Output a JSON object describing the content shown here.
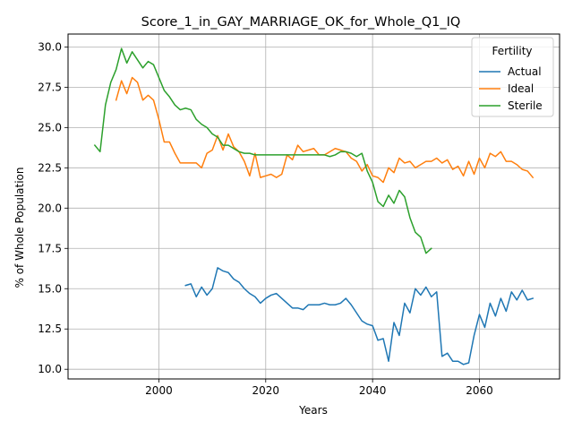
{
  "chart_data": {
    "type": "line",
    "title": "Score_1_in_GAY_MARRIAGE_OK_for_Whole_Q1_IQ",
    "xlabel": "Years",
    "ylabel": "% of Whole Population",
    "xlim": [
      1983,
      2075
    ],
    "ylim": [
      9.4,
      30.8
    ],
    "xticks": [
      2000,
      2020,
      2040,
      2060
    ],
    "yticks": [
      10.0,
      12.5,
      15.0,
      17.5,
      20.0,
      22.5,
      25.0,
      27.5,
      30.0
    ],
    "xtick_labels": [
      "2000",
      "2020",
      "2040",
      "2060"
    ],
    "ytick_labels": [
      "10.0",
      "12.5",
      "15.0",
      "17.5",
      "20.0",
      "22.5",
      "25.0",
      "27.5",
      "30.0"
    ],
    "grid": true,
    "legend": {
      "title": "Fertility",
      "position": "top-right"
    },
    "series": [
      {
        "name": "Actual",
        "color": "#1f77b4",
        "x": [
          2005,
          2006,
          2007,
          2008,
          2009,
          2010,
          2011,
          2012,
          2013,
          2014,
          2015,
          2016,
          2017,
          2018,
          2019,
          2020,
          2021,
          2022,
          2023,
          2024,
          2025,
          2026,
          2027,
          2028,
          2029,
          2030,
          2031,
          2032,
          2033,
          2034,
          2035,
          2036,
          2037,
          2038,
          2039,
          2040,
          2041,
          2042,
          2043,
          2044,
          2045,
          2046,
          2047,
          2048,
          2049,
          2050,
          2051,
          2052,
          2053,
          2054,
          2055,
          2056,
          2057,
          2058,
          2059,
          2060,
          2061,
          2062,
          2063,
          2064,
          2065,
          2066,
          2067,
          2068,
          2069,
          2070
        ],
        "y": [
          15.2,
          15.3,
          14.5,
          15.1,
          14.6,
          15.0,
          16.3,
          16.1,
          16.0,
          15.6,
          15.4,
          15.0,
          14.7,
          14.5,
          14.1,
          14.4,
          14.6,
          14.7,
          14.4,
          14.1,
          13.8,
          13.8,
          13.7,
          14.0,
          14.0,
          14.0,
          14.1,
          14.0,
          14.0,
          14.1,
          14.4,
          14.0,
          13.5,
          13.0,
          12.8,
          12.7,
          11.8,
          11.9,
          10.5,
          12.9,
          12.1,
          14.1,
          13.5,
          15.0,
          14.6,
          15.1,
          14.5,
          14.8,
          10.8,
          11.0,
          10.5,
          10.5,
          10.3,
          10.4,
          12.1,
          13.4,
          12.6,
          14.1,
          13.3,
          14.4,
          13.6,
          14.8,
          14.3,
          14.9,
          14.3,
          14.4
        ]
      },
      {
        "name": "Ideal",
        "color": "#ff7f0e",
        "x": [
          1992,
          1993,
          1994,
          1995,
          1996,
          1997,
          1998,
          1999,
          2000,
          2001,
          2002,
          2003,
          2004,
          2005,
          2006,
          2007,
          2008,
          2009,
          2010,
          2011,
          2012,
          2013,
          2014,
          2015,
          2016,
          2017,
          2018,
          2019,
          2020,
          2021,
          2022,
          2023,
          2024,
          2025,
          2026,
          2027,
          2028,
          2029,
          2030,
          2031,
          2032,
          2033,
          2034,
          2035,
          2036,
          2037,
          2038,
          2039,
          2040,
          2041,
          2042,
          2043,
          2044,
          2045,
          2046,
          2047,
          2048,
          2049,
          2050,
          2051,
          2052,
          2053,
          2054,
          2055,
          2056,
          2057,
          2058,
          2059,
          2060,
          2061,
          2062,
          2063,
          2064,
          2065,
          2066,
          2067,
          2068,
          2069,
          2070
        ],
        "y": [
          26.7,
          27.9,
          27.1,
          28.1,
          27.8,
          26.7,
          27.0,
          26.7,
          25.5,
          24.1,
          24.1,
          23.4,
          22.8,
          22.8,
          22.8,
          22.8,
          22.5,
          23.4,
          23.6,
          24.5,
          23.6,
          24.6,
          23.8,
          23.5,
          22.9,
          22.0,
          23.4,
          21.9,
          22.0,
          22.1,
          21.9,
          22.1,
          23.3,
          23.0,
          23.9,
          23.5,
          23.6,
          23.7,
          23.3,
          23.3,
          23.5,
          23.7,
          23.6,
          23.5,
          23.1,
          22.9,
          22.3,
          22.7,
          22.0,
          21.9,
          21.6,
          22.5,
          22.2,
          23.1,
          22.8,
          22.9,
          22.5,
          22.7,
          22.9,
          22.9,
          23.1,
          22.8,
          23.0,
          22.4,
          22.6,
          22.0,
          22.9,
          22.1,
          23.1,
          22.5,
          23.4,
          23.2,
          23.5,
          22.9,
          22.9,
          22.7,
          22.4,
          22.3,
          21.9
        ]
      },
      {
        "name": "Sterile",
        "color": "#2ca02c",
        "x": [
          1988,
          1989,
          1990,
          1991,
          1992,
          1993,
          1994,
          1995,
          1996,
          1997,
          1998,
          1999,
          2000,
          2001,
          2002,
          2003,
          2004,
          2005,
          2006,
          2007,
          2008,
          2009,
          2010,
          2011,
          2012,
          2013,
          2014,
          2015,
          2016,
          2017,
          2018,
          2019,
          2020,
          2021,
          2022,
          2023,
          2024,
          2025,
          2026,
          2027,
          2028,
          2029,
          2030,
          2031,
          2032,
          2033,
          2034,
          2035,
          2036,
          2037,
          2038,
          2039,
          2040,
          2041,
          2042,
          2043,
          2044,
          2045,
          2046,
          2047,
          2048,
          2049,
          2050,
          2051
        ],
        "y": [
          23.9,
          23.5,
          26.4,
          27.8,
          28.6,
          29.9,
          29.0,
          29.7,
          29.2,
          28.7,
          29.1,
          28.9,
          28.1,
          27.3,
          26.9,
          26.4,
          26.1,
          26.2,
          26.1,
          25.5,
          25.2,
          25.0,
          24.6,
          24.4,
          23.9,
          23.9,
          23.7,
          23.5,
          23.4,
          23.4,
          23.3,
          23.3,
          23.3,
          23.3,
          23.3,
          23.3,
          23.3,
          23.3,
          23.3,
          23.3,
          23.3,
          23.3,
          23.3,
          23.3,
          23.2,
          23.3,
          23.5,
          23.5,
          23.4,
          23.2,
          23.4,
          22.3,
          21.6,
          20.4,
          20.1,
          20.8,
          20.3,
          21.1,
          20.7,
          19.4,
          18.5,
          18.2,
          17.2,
          17.5
        ]
      }
    ]
  }
}
